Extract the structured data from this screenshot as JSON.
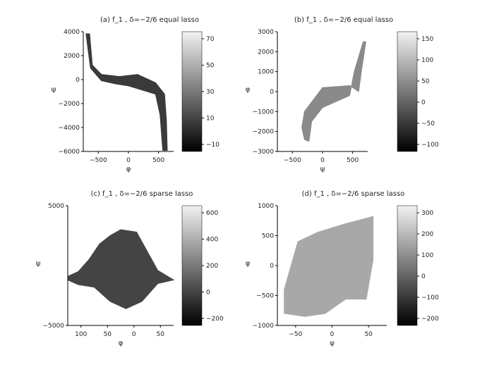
{
  "chart_data": [
    {
      "type": "heatmap",
      "title": "(a) f_1 , δ=−2/6 equal lasso",
      "xlabel": "φ",
      "ylabel": "ψ",
      "xticks": [
        "−500",
        "0",
        "500"
      ],
      "yticks": [
        "4000",
        "2000",
        "0",
        "−2000",
        "−4000",
        "−6000"
      ],
      "colorbar_ticks": [
        "70",
        "50",
        "30",
        "10",
        "−10"
      ],
      "xlim": [
        -500,
        500
      ],
      "ylim": [
        -6500,
        5000
      ],
      "clim": [
        -10,
        80
      ],
      "region": [
        [
          -470,
          4800
        ],
        [
          -430,
          4800
        ],
        [
          -400,
          1800
        ],
        [
          -300,
          900
        ],
        [
          -100,
          700
        ],
        [
          100,
          900
        ],
        [
          300,
          100
        ],
        [
          400,
          -1000
        ],
        [
          420,
          -3500
        ],
        [
          430,
          -6400
        ],
        [
          380,
          -6400
        ],
        [
          350,
          -3000
        ],
        [
          300,
          -1000
        ],
        [
          150,
          -600
        ],
        [
          0,
          -200
        ],
        [
          -150,
          0
        ],
        [
          -300,
          300
        ],
        [
          -420,
          1500
        ]
      ]
    },
    {
      "type": "heatmap",
      "title": "(b) f_1 , δ=−2/6 equal lasso",
      "xlabel": "ψ",
      "ylabel": "φ",
      "xticks": [
        "−500",
        "0",
        "500"
      ],
      "yticks": [
        "3000",
        "2000",
        "1000",
        "0",
        "−1000",
        "−2000",
        "−3000"
      ],
      "colorbar_ticks": [
        "150",
        "100",
        "50",
        "0",
        "−50",
        "−100"
      ],
      "xlim": [
        -500,
        500
      ],
      "ylim": [
        -3000,
        3000
      ],
      "clim": [
        -120,
        160
      ],
      "region": [
        [
          -200,
          -2400
        ],
        [
          -150,
          -2500
        ],
        [
          -120,
          -1500
        ],
        [
          0,
          -800
        ],
        [
          150,
          -500
        ],
        [
          300,
          -200
        ],
        [
          350,
          1000
        ],
        [
          450,
          2500
        ],
        [
          480,
          2500
        ],
        [
          430,
          1000
        ],
        [
          400,
          0
        ],
        [
          300,
          300
        ],
        [
          0,
          200
        ],
        [
          -100,
          -400
        ],
        [
          -200,
          -1000
        ],
        [
          -230,
          -1800
        ]
      ]
    },
    {
      "type": "heatmap",
      "title": "(c) f_1 , δ=−2/6 sparse lasso",
      "xlabel": "φ",
      "ylabel": "ψ",
      "xticks": [
        "100",
        "50",
        "0",
        "50"
      ],
      "yticks": [
        "5000",
        "−5000"
      ],
      "colorbar_ticks": [
        "600",
        "400",
        "200",
        "0",
        "−200"
      ],
      "xlim": [
        -120,
        80
      ],
      "ylim": [
        -5000,
        5000
      ],
      "clim": [
        -250,
        650
      ],
      "region": [
        [
          -120,
          -900
        ],
        [
          -100,
          -500
        ],
        [
          -80,
          500
        ],
        [
          -60,
          1800
        ],
        [
          -40,
          2500
        ],
        [
          -20,
          3000
        ],
        [
          10,
          2800
        ],
        [
          30,
          1200
        ],
        [
          50,
          -400
        ],
        [
          80,
          -1200
        ],
        [
          50,
          -1500
        ],
        [
          20,
          -3000
        ],
        [
          -10,
          -3600
        ],
        [
          -40,
          -3000
        ],
        [
          -70,
          -1800
        ],
        [
          -100,
          -1600
        ],
        [
          -120,
          -1200
        ]
      ]
    },
    {
      "type": "heatmap",
      "title": "(d) f_1 , δ=−2/6 sparse lasso",
      "xlabel": "ψ",
      "ylabel": "φ",
      "xticks": [
        "−50",
        "0",
        "50"
      ],
      "yticks": [
        "1000",
        "500",
        "0",
        "−500",
        "−1000"
      ],
      "colorbar_ticks": [
        "300",
        "200",
        "100",
        "0",
        "−100",
        "−200"
      ],
      "xlim": [
        -80,
        80
      ],
      "ylim": [
        -1000,
        1000
      ],
      "clim": [
        -220,
        320
      ],
      "region": [
        [
          -70,
          -400
        ],
        [
          -50,
          400
        ],
        [
          -20,
          560
        ],
        [
          20,
          700
        ],
        [
          60,
          820
        ],
        [
          60,
          100
        ],
        [
          50,
          -560
        ],
        [
          20,
          -560
        ],
        [
          -10,
          -800
        ],
        [
          -40,
          -850
        ],
        [
          -70,
          -800
        ]
      ]
    }
  ]
}
